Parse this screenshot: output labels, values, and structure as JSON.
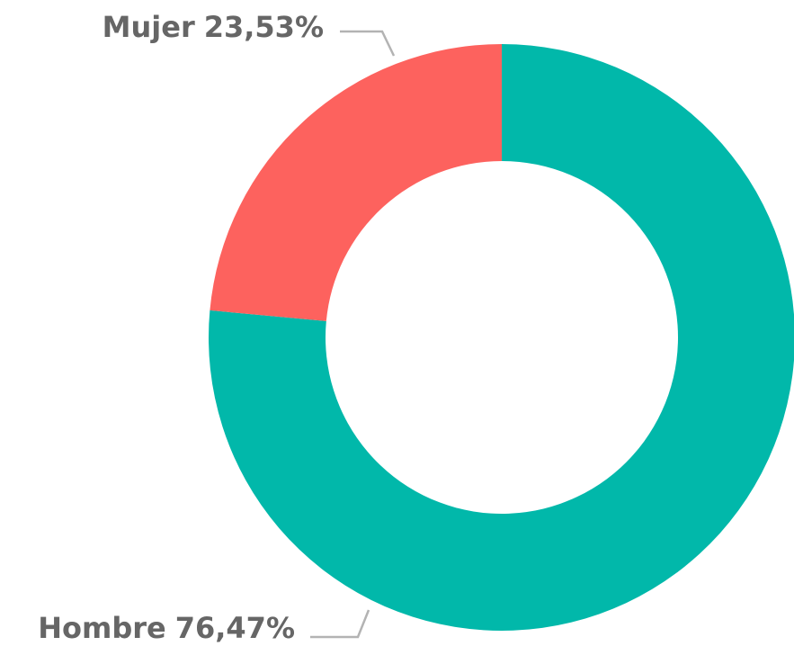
{
  "chart_data": {
    "type": "donut",
    "categories": [
      "Hombre",
      "Mujer"
    ],
    "values": [
      76.47,
      23.53
    ],
    "value_labels": [
      "76,47%",
      "23,53%"
    ],
    "colors": [
      "#01b8aa",
      "#fd625e"
    ]
  }
}
